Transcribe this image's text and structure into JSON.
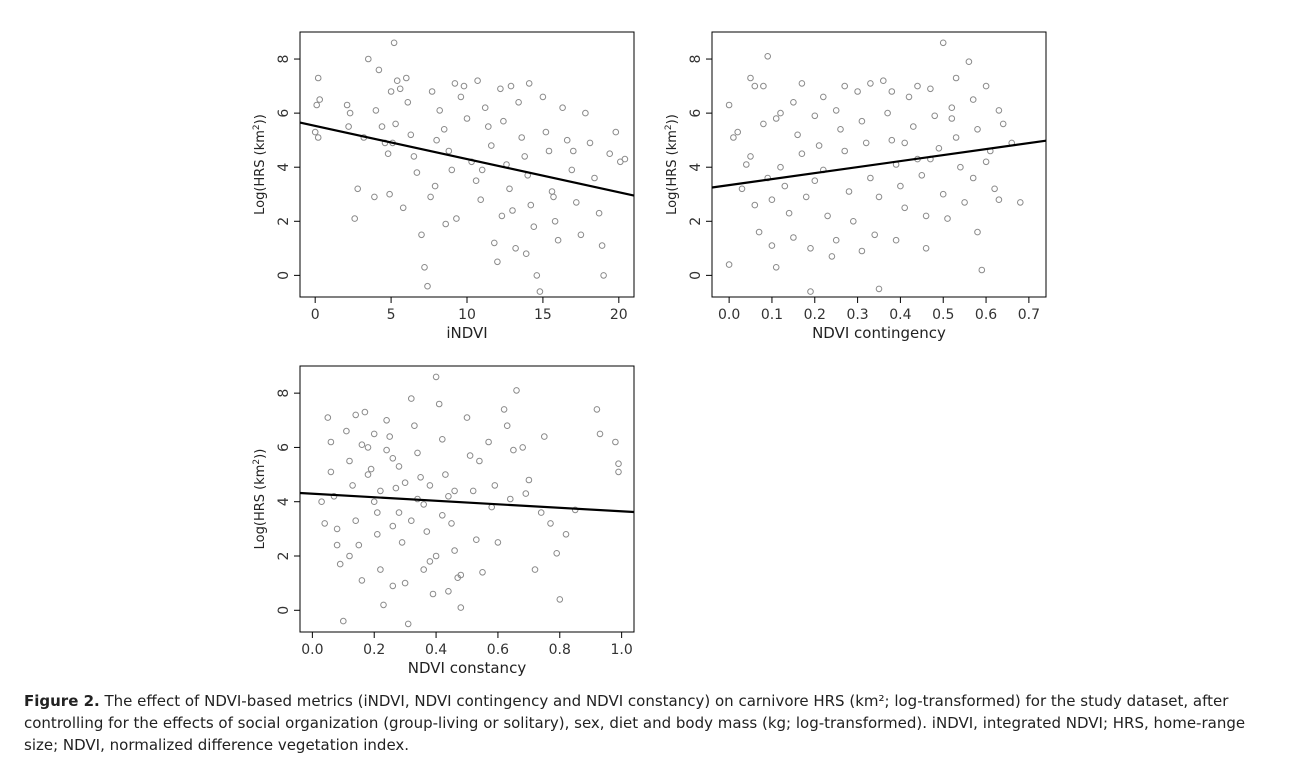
{
  "caption": {
    "label": "Figure 2.",
    "text": "The effect of NDVI-based metrics (iNDVI, NDVI contingency and NDVI constancy) on carnivore HRS (km²; log-transformed) for the study dataset, after controlling for the effects of social organization (group-living or solitary), sex, diet and body mass (kg; log-transformed). iNDVI, integrated NDVI; HRS, home-range size; NDVI, normalized difference vegetation index."
  },
  "colors": {
    "points": "#8a8a8a",
    "line": "#000000",
    "frame": "#000000"
  },
  "chart_data": [
    {
      "type": "scatter",
      "id": "indvi",
      "xlabel": "iNDVI",
      "ylabel_main": "Log(HRS (km",
      "ylabel_sup": "2",
      "ylabel_end": "))",
      "xlim": [
        -1,
        21
      ],
      "ylim": [
        -0.8,
        9.0
      ],
      "xticks": [
        0,
        5,
        10,
        15,
        20
      ],
      "yticks": [
        0,
        2,
        4,
        6,
        8
      ],
      "fit_line": [
        [
          -1,
          5.65
        ],
        [
          21,
          2.95
        ]
      ],
      "points": [
        [
          0.2,
          7.3
        ],
        [
          0.1,
          6.3
        ],
        [
          0.0,
          5.3
        ],
        [
          0.2,
          5.1
        ],
        [
          0.3,
          6.5
        ],
        [
          2.1,
          6.3
        ],
        [
          2.2,
          5.5
        ],
        [
          2.3,
          6.0
        ],
        [
          2.6,
          2.1
        ],
        [
          2.8,
          3.2
        ],
        [
          3.5,
          8.0
        ],
        [
          4.2,
          7.6
        ],
        [
          4.0,
          6.1
        ],
        [
          4.4,
          5.5
        ],
        [
          4.6,
          4.9
        ],
        [
          4.8,
          4.5
        ],
        [
          5.0,
          6.8
        ],
        [
          5.2,
          8.6
        ],
        [
          5.4,
          7.2
        ],
        [
          5.6,
          6.9
        ],
        [
          5.3,
          5.6
        ],
        [
          5.1,
          4.9
        ],
        [
          4.9,
          3.0
        ],
        [
          5.8,
          2.5
        ],
        [
          6.1,
          6.4
        ],
        [
          6.3,
          5.2
        ],
        [
          6.5,
          4.4
        ],
        [
          6.7,
          3.8
        ],
        [
          7.0,
          1.5
        ],
        [
          7.2,
          0.3
        ],
        [
          7.4,
          -0.4
        ],
        [
          7.6,
          2.9
        ],
        [
          7.9,
          3.3
        ],
        [
          8.0,
          5.0
        ],
        [
          8.2,
          6.1
        ],
        [
          8.5,
          5.4
        ],
        [
          8.8,
          4.6
        ],
        [
          9.0,
          3.9
        ],
        [
          9.3,
          2.1
        ],
        [
          9.6,
          6.6
        ],
        [
          9.8,
          7.0
        ],
        [
          10.0,
          5.8
        ],
        [
          10.3,
          4.2
        ],
        [
          10.6,
          3.5
        ],
        [
          10.9,
          2.8
        ],
        [
          11.2,
          6.2
        ],
        [
          11.4,
          5.5
        ],
        [
          11.6,
          4.8
        ],
        [
          11.8,
          1.2
        ],
        [
          12.0,
          0.5
        ],
        [
          12.2,
          6.9
        ],
        [
          12.4,
          5.7
        ],
        [
          12.6,
          4.1
        ],
        [
          12.8,
          3.2
        ],
        [
          13.0,
          2.4
        ],
        [
          13.2,
          1.0
        ],
        [
          13.4,
          6.4
        ],
        [
          13.6,
          5.1
        ],
        [
          13.8,
          4.4
        ],
        [
          14.0,
          3.7
        ],
        [
          14.2,
          2.6
        ],
        [
          14.4,
          1.8
        ],
        [
          14.6,
          0.0
        ],
        [
          14.8,
          -0.6
        ],
        [
          15.0,
          6.6
        ],
        [
          15.2,
          5.3
        ],
        [
          15.4,
          4.6
        ],
        [
          15.6,
          3.1
        ],
        [
          15.8,
          2.0
        ],
        [
          16.0,
          1.3
        ],
        [
          16.3,
          6.2
        ],
        [
          16.6,
          5.0
        ],
        [
          16.9,
          3.9
        ],
        [
          17.2,
          2.7
        ],
        [
          17.5,
          1.5
        ],
        [
          17.8,
          6.0
        ],
        [
          18.1,
          4.9
        ],
        [
          18.4,
          3.6
        ],
        [
          18.7,
          2.3
        ],
        [
          19.0,
          0.0
        ],
        [
          19.4,
          4.5
        ],
        [
          19.8,
          5.3
        ],
        [
          20.1,
          4.2
        ],
        [
          20.4,
          4.3
        ],
        [
          6.0,
          7.3
        ],
        [
          7.7,
          6.8
        ],
        [
          9.2,
          7.1
        ],
        [
          10.7,
          7.2
        ],
        [
          12.9,
          7.0
        ],
        [
          14.1,
          7.1
        ],
        [
          3.2,
          5.1
        ],
        [
          3.9,
          2.9
        ],
        [
          8.6,
          1.9
        ],
        [
          11.0,
          3.9
        ],
        [
          12.3,
          2.2
        ],
        [
          13.9,
          0.8
        ],
        [
          15.7,
          2.9
        ],
        [
          17.0,
          4.6
        ],
        [
          18.9,
          1.1
        ]
      ]
    },
    {
      "type": "scatter",
      "id": "contingency",
      "xlabel": "NDVI contingency",
      "ylabel_main": "Log(HRS (km",
      "ylabel_sup": "2",
      "ylabel_end": "))",
      "xlim": [
        -0.04,
        0.74
      ],
      "ylim": [
        -0.8,
        9.0
      ],
      "xticks": [
        0.0,
        0.1,
        0.2,
        0.3,
        0.4,
        0.5,
        0.6,
        0.7
      ],
      "xtick_labels": [
        "0.0",
        "0.1",
        "0.2",
        "0.3",
        "0.4",
        "0.5",
        "0.6",
        "0.7"
      ],
      "yticks": [
        0,
        2,
        4,
        6,
        8
      ],
      "fit_line": [
        [
          -0.04,
          3.25
        ],
        [
          0.74,
          4.98
        ]
      ],
      "points": [
        [
          0.0,
          6.3
        ],
        [
          0.01,
          5.1
        ],
        [
          0.0,
          0.4
        ],
        [
          0.03,
          3.2
        ],
        [
          0.04,
          4.1
        ],
        [
          0.05,
          7.3
        ],
        [
          0.05,
          4.4
        ],
        [
          0.06,
          2.6
        ],
        [
          0.07,
          1.6
        ],
        [
          0.08,
          7.0
        ],
        [
          0.09,
          8.1
        ],
        [
          0.08,
          5.6
        ],
        [
          0.09,
          3.6
        ],
        [
          0.1,
          2.8
        ],
        [
          0.1,
          1.1
        ],
        [
          0.11,
          5.8
        ],
        [
          0.12,
          4.0
        ],
        [
          0.13,
          3.3
        ],
        [
          0.14,
          2.3
        ],
        [
          0.15,
          6.4
        ],
        [
          0.16,
          5.2
        ],
        [
          0.17,
          4.5
        ],
        [
          0.18,
          2.9
        ],
        [
          0.19,
          1.0
        ],
        [
          0.19,
          -0.6
        ],
        [
          0.2,
          5.9
        ],
        [
          0.21,
          4.8
        ],
        [
          0.22,
          3.9
        ],
        [
          0.23,
          2.2
        ],
        [
          0.24,
          0.7
        ],
        [
          0.25,
          6.1
        ],
        [
          0.26,
          5.4
        ],
        [
          0.27,
          4.6
        ],
        [
          0.28,
          3.1
        ],
        [
          0.29,
          2.0
        ],
        [
          0.3,
          6.8
        ],
        [
          0.31,
          5.7
        ],
        [
          0.32,
          4.9
        ],
        [
          0.33,
          3.6
        ],
        [
          0.34,
          1.5
        ],
        [
          0.35,
          -0.5
        ],
        [
          0.36,
          7.2
        ],
        [
          0.37,
          6.0
        ],
        [
          0.38,
          5.0
        ],
        [
          0.39,
          4.1
        ],
        [
          0.4,
          3.3
        ],
        [
          0.41,
          2.5
        ],
        [
          0.42,
          6.6
        ],
        [
          0.43,
          5.5
        ],
        [
          0.44,
          4.3
        ],
        [
          0.45,
          3.7
        ],
        [
          0.46,
          1.0
        ],
        [
          0.47,
          6.9
        ],
        [
          0.48,
          5.9
        ],
        [
          0.49,
          4.7
        ],
        [
          0.5,
          8.6
        ],
        [
          0.5,
          3.0
        ],
        [
          0.51,
          2.1
        ],
        [
          0.52,
          6.2
        ],
        [
          0.53,
          5.1
        ],
        [
          0.54,
          4.0
        ],
        [
          0.55,
          2.7
        ],
        [
          0.56,
          7.9
        ],
        [
          0.57,
          6.5
        ],
        [
          0.58,
          5.4
        ],
        [
          0.58,
          1.6
        ],
        [
          0.59,
          0.2
        ],
        [
          0.6,
          7.0
        ],
        [
          0.61,
          4.6
        ],
        [
          0.62,
          3.2
        ],
        [
          0.63,
          6.1
        ],
        [
          0.64,
          5.6
        ],
        [
          0.66,
          4.9
        ],
        [
          0.68,
          2.7
        ],
        [
          0.02,
          5.3
        ],
        [
          0.06,
          7.0
        ],
        [
          0.12,
          6.0
        ],
        [
          0.17,
          7.1
        ],
        [
          0.22,
          6.6
        ],
        [
          0.27,
          7.0
        ],
        [
          0.33,
          7.1
        ],
        [
          0.38,
          6.8
        ],
        [
          0.44,
          7.0
        ],
        [
          0.53,
          7.3
        ],
        [
          0.57,
          3.6
        ],
        [
          0.46,
          2.2
        ],
        [
          0.39,
          1.3
        ],
        [
          0.31,
          0.9
        ],
        [
          0.25,
          1.3
        ],
        [
          0.15,
          1.4
        ],
        [
          0.11,
          0.3
        ],
        [
          0.2,
          3.5
        ],
        [
          0.35,
          2.9
        ],
        [
          0.41,
          4.9
        ],
        [
          0.47,
          4.3
        ],
        [
          0.52,
          5.8
        ],
        [
          0.6,
          4.2
        ],
        [
          0.63,
          2.8
        ]
      ]
    },
    {
      "type": "scatter",
      "id": "constancy",
      "xlabel": "NDVI constancy",
      "ylabel_main": "Log(HRS (km",
      "ylabel_sup": "2",
      "ylabel_end": "))",
      "xlim": [
        -0.04,
        1.04
      ],
      "ylim": [
        -0.8,
        9.0
      ],
      "xticks": [
        0.0,
        0.2,
        0.4,
        0.6,
        0.8,
        1.0
      ],
      "xtick_labels": [
        "0.0",
        "0.2",
        "0.4",
        "0.6",
        "0.8",
        "1.0"
      ],
      "yticks": [
        0,
        2,
        4,
        6,
        8
      ],
      "fit_line": [
        [
          -0.04,
          4.32
        ],
        [
          1.04,
          3.62
        ]
      ],
      "points": [
        [
          0.05,
          7.1
        ],
        [
          0.06,
          6.2
        ],
        [
          0.07,
          4.2
        ],
        [
          0.08,
          3.0
        ],
        [
          0.09,
          1.7
        ],
        [
          0.1,
          -0.4
        ],
        [
          0.11,
          6.6
        ],
        [
          0.12,
          5.5
        ],
        [
          0.13,
          4.6
        ],
        [
          0.14,
          3.3
        ],
        [
          0.15,
          2.4
        ],
        [
          0.16,
          1.1
        ],
        [
          0.17,
          7.3
        ],
        [
          0.18,
          6.0
        ],
        [
          0.19,
          5.2
        ],
        [
          0.2,
          4.0
        ],
        [
          0.21,
          2.8
        ],
        [
          0.22,
          1.5
        ],
        [
          0.23,
          0.2
        ],
        [
          0.24,
          7.0
        ],
        [
          0.25,
          6.4
        ],
        [
          0.26,
          5.6
        ],
        [
          0.27,
          4.5
        ],
        [
          0.28,
          3.6
        ],
        [
          0.29,
          2.5
        ],
        [
          0.3,
          1.0
        ],
        [
          0.31,
          -0.5
        ],
        [
          0.32,
          7.8
        ],
        [
          0.33,
          6.8
        ],
        [
          0.34,
          5.8
        ],
        [
          0.35,
          4.9
        ],
        [
          0.36,
          3.9
        ],
        [
          0.37,
          2.9
        ],
        [
          0.38,
          1.8
        ],
        [
          0.39,
          0.6
        ],
        [
          0.4,
          8.6
        ],
        [
          0.41,
          7.6
        ],
        [
          0.42,
          6.3
        ],
        [
          0.43,
          5.0
        ],
        [
          0.44,
          4.2
        ],
        [
          0.45,
          3.2
        ],
        [
          0.46,
          2.2
        ],
        [
          0.47,
          1.2
        ],
        [
          0.48,
          0.1
        ],
        [
          0.5,
          7.1
        ],
        [
          0.51,
          5.7
        ],
        [
          0.52,
          4.4
        ],
        [
          0.53,
          2.6
        ],
        [
          0.55,
          1.4
        ],
        [
          0.57,
          6.2
        ],
        [
          0.58,
          3.8
        ],
        [
          0.6,
          2.5
        ],
        [
          0.62,
          7.4
        ],
        [
          0.63,
          6.8
        ],
        [
          0.65,
          5.9
        ],
        [
          0.66,
          8.1
        ],
        [
          0.68,
          6.0
        ],
        [
          0.69,
          4.3
        ],
        [
          0.72,
          1.5
        ],
        [
          0.75,
          6.4
        ],
        [
          0.77,
          3.2
        ],
        [
          0.79,
          2.1
        ],
        [
          0.8,
          0.4
        ],
        [
          0.82,
          2.8
        ],
        [
          0.92,
          7.4
        ],
        [
          0.93,
          6.5
        ],
        [
          0.98,
          6.2
        ],
        [
          0.99,
          5.4
        ],
        [
          0.99,
          5.1
        ],
        [
          0.03,
          4.0
        ],
        [
          0.04,
          3.2
        ],
        [
          0.06,
          5.1
        ],
        [
          0.14,
          7.2
        ],
        [
          0.18,
          5.0
        ],
        [
          0.22,
          4.4
        ],
        [
          0.26,
          3.1
        ],
        [
          0.3,
          4.7
        ],
        [
          0.34,
          4.1
        ],
        [
          0.38,
          4.6
        ],
        [
          0.42,
          3.5
        ],
        [
          0.46,
          4.4
        ],
        [
          0.54,
          5.5
        ],
        [
          0.59,
          4.6
        ],
        [
          0.64,
          4.1
        ],
        [
          0.7,
          4.8
        ],
        [
          0.74,
          3.6
        ],
        [
          0.85,
          3.7
        ],
        [
          0.16,
          6.1
        ],
        [
          0.2,
          6.5
        ],
        [
          0.24,
          5.9
        ],
        [
          0.28,
          5.3
        ],
        [
          0.32,
          3.3
        ],
        [
          0.36,
          1.5
        ],
        [
          0.4,
          2.0
        ],
        [
          0.44,
          0.7
        ],
        [
          0.48,
          1.3
        ],
        [
          0.12,
          2.0
        ],
        [
          0.08,
          2.4
        ],
        [
          0.26,
          0.9
        ],
        [
          0.21,
          3.6
        ]
      ]
    }
  ]
}
